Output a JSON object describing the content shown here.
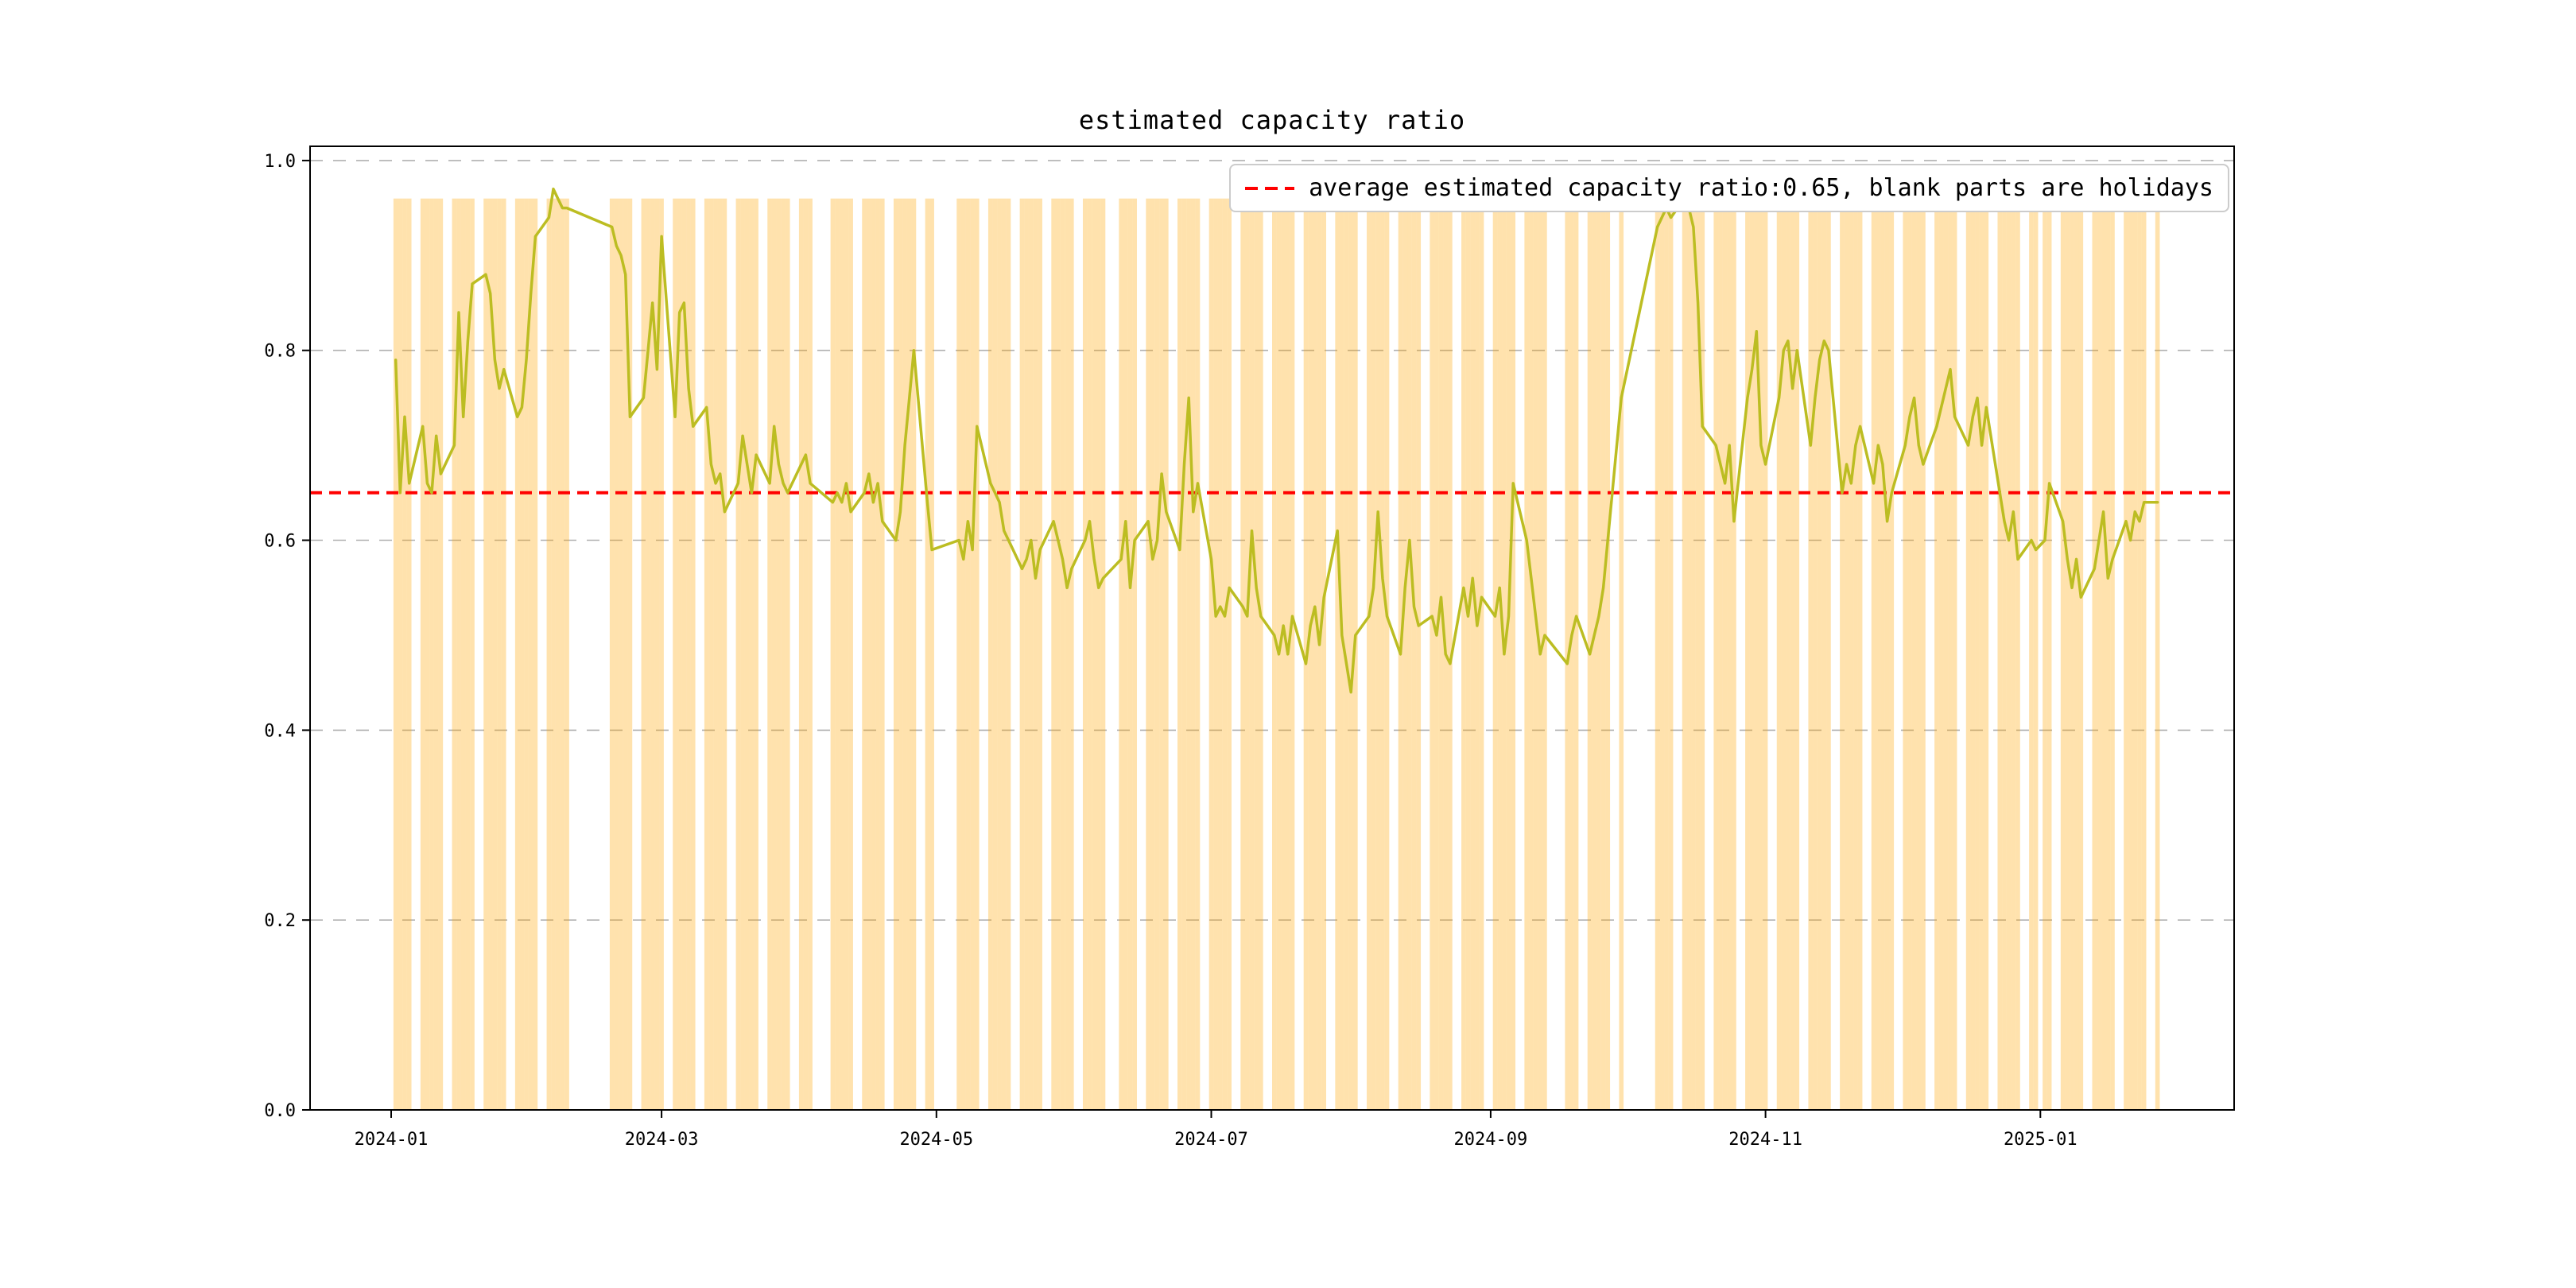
{
  "chart_data": {
    "type": "line",
    "title": "estimated capacity ratio",
    "legend": {
      "label": "average estimated capacity ratio:0.65, blank parts are holidays",
      "symbol": "dashed-line",
      "color": "#ff0000",
      "position": "upper right"
    },
    "average_line": {
      "value": 0.65,
      "color": "#ff0000",
      "linestyle": "dashed"
    },
    "x_axis": {
      "type": "date",
      "domain": [
        "2023-12-14",
        "2025-02-13"
      ],
      "tick_dates": [
        "2024-01-01",
        "2024-03-01",
        "2024-05-01",
        "2024-07-01",
        "2024-09-01",
        "2024-11-01",
        "2025-01-01"
      ],
      "tick_labels": [
        "2024-01",
        "2024-03",
        "2024-05",
        "2024-07",
        "2024-09",
        "2024-11",
        "2025-01"
      ]
    },
    "y_axis": {
      "domain": [
        0,
        1.015
      ],
      "tick_values": [
        0.0,
        0.2,
        0.4,
        0.6,
        0.8,
        1.0
      ],
      "tick_labels": [
        "0.0",
        "0.2",
        "0.4",
        "0.6",
        "0.8",
        "1.0"
      ],
      "grid": "dashed",
      "grid_color": "#b0b0b0"
    },
    "line": {
      "color": "#bcbd22",
      "width": 3.5
    },
    "workday_shading": {
      "color": "#ffa500",
      "opacity": 0.32,
      "top": 0.96,
      "start_date": "2024-01-02",
      "end_date": "2025-01-27",
      "note": "blank parts are holidays"
    },
    "holidays": [
      [
        "2024-02-10",
        "2024-02-18"
      ],
      [
        "2024-04-04",
        "2024-04-07"
      ],
      [
        "2024-05-01",
        "2024-05-05"
      ],
      [
        "2024-06-10",
        "2024-06-10"
      ],
      [
        "2024-09-16",
        "2024-09-17"
      ],
      [
        "2024-10-01",
        "2024-10-07"
      ],
      [
        "2025-01-01",
        "2025-01-01"
      ]
    ],
    "series": [
      {
        "name": "estimated capacity ratio",
        "frequency": "workdays-excluding-holidays",
        "start_date": "2024-01-02",
        "values": [
          0.79,
          0.65,
          0.73,
          0.66,
          0.72,
          0.66,
          0.65,
          0.71,
          0.67,
          0.7,
          0.84,
          0.73,
          0.81,
          0.87,
          0.88,
          0.86,
          0.79,
          0.76,
          0.78,
          0.73,
          0.74,
          0.79,
          0.86,
          0.92,
          0.94,
          0.97,
          0.96,
          0.95,
          0.95,
          0.93,
          0.91,
          0.9,
          0.88,
          0.73,
          0.75,
          0.8,
          0.85,
          0.78,
          0.92,
          0.73,
          0.84,
          0.85,
          0.76,
          0.72,
          0.74,
          0.68,
          0.66,
          0.67,
          0.63,
          0.66,
          0.71,
          0.68,
          0.65,
          0.69,
          0.66,
          0.72,
          0.68,
          0.66,
          0.65,
          0.68,
          0.69,
          0.66,
          0.64,
          0.65,
          0.64,
          0.66,
          0.63,
          0.65,
          0.67,
          0.64,
          0.66,
          0.62,
          0.6,
          0.63,
          0.7,
          0.75,
          0.8,
          0.64,
          0.59,
          0.6,
          0.58,
          0.62,
          0.59,
          0.72,
          0.66,
          0.65,
          0.64,
          0.61,
          0.6,
          0.57,
          0.58,
          0.6,
          0.56,
          0.59,
          0.62,
          0.6,
          0.58,
          0.55,
          0.57,
          0.6,
          0.62,
          0.58,
          0.55,
          0.56,
          0.58,
          0.62,
          0.55,
          0.6,
          0.62,
          0.58,
          0.6,
          0.67,
          0.63,
          0.59,
          0.68,
          0.75,
          0.63,
          0.66,
          0.58,
          0.52,
          0.53,
          0.52,
          0.55,
          0.53,
          0.52,
          0.61,
          0.55,
          0.52,
          0.5,
          0.48,
          0.51,
          0.48,
          0.52,
          0.47,
          0.51,
          0.53,
          0.49,
          0.54,
          0.61,
          0.5,
          0.47,
          0.44,
          0.5,
          0.52,
          0.55,
          0.63,
          0.56,
          0.52,
          0.48,
          0.55,
          0.6,
          0.53,
          0.51,
          0.52,
          0.5,
          0.54,
          0.48,
          0.47,
          0.55,
          0.52,
          0.56,
          0.51,
          0.54,
          0.52,
          0.55,
          0.48,
          0.52,
          0.66,
          0.6,
          0.56,
          0.52,
          0.48,
          0.5,
          0.47,
          0.5,
          0.52,
          0.48,
          0.5,
          0.52,
          0.55,
          0.6,
          0.75,
          0.93,
          0.94,
          0.95,
          0.94,
          0.96,
          0.95,
          0.93,
          0.85,
          0.72,
          0.7,
          0.68,
          0.66,
          0.7,
          0.62,
          0.75,
          0.78,
          0.82,
          0.7,
          0.68,
          0.75,
          0.8,
          0.81,
          0.76,
          0.8,
          0.7,
          0.75,
          0.79,
          0.81,
          0.8,
          0.65,
          0.68,
          0.66,
          0.7,
          0.72,
          0.66,
          0.7,
          0.68,
          0.62,
          0.65,
          0.7,
          0.73,
          0.75,
          0.7,
          0.68,
          0.72,
          0.74,
          0.76,
          0.78,
          0.73,
          0.7,
          0.73,
          0.75,
          0.7,
          0.74,
          0.65,
          0.62,
          0.6,
          0.63,
          0.58,
          0.6,
          0.59,
          0.6,
          0.66,
          0.62,
          0.58,
          0.55,
          0.58,
          0.54,
          0.57,
          0.6,
          0.63,
          0.56,
          0.58,
          0.62,
          0.6,
          0.63,
          0.62,
          0.64,
          0.64
        ]
      }
    ]
  }
}
